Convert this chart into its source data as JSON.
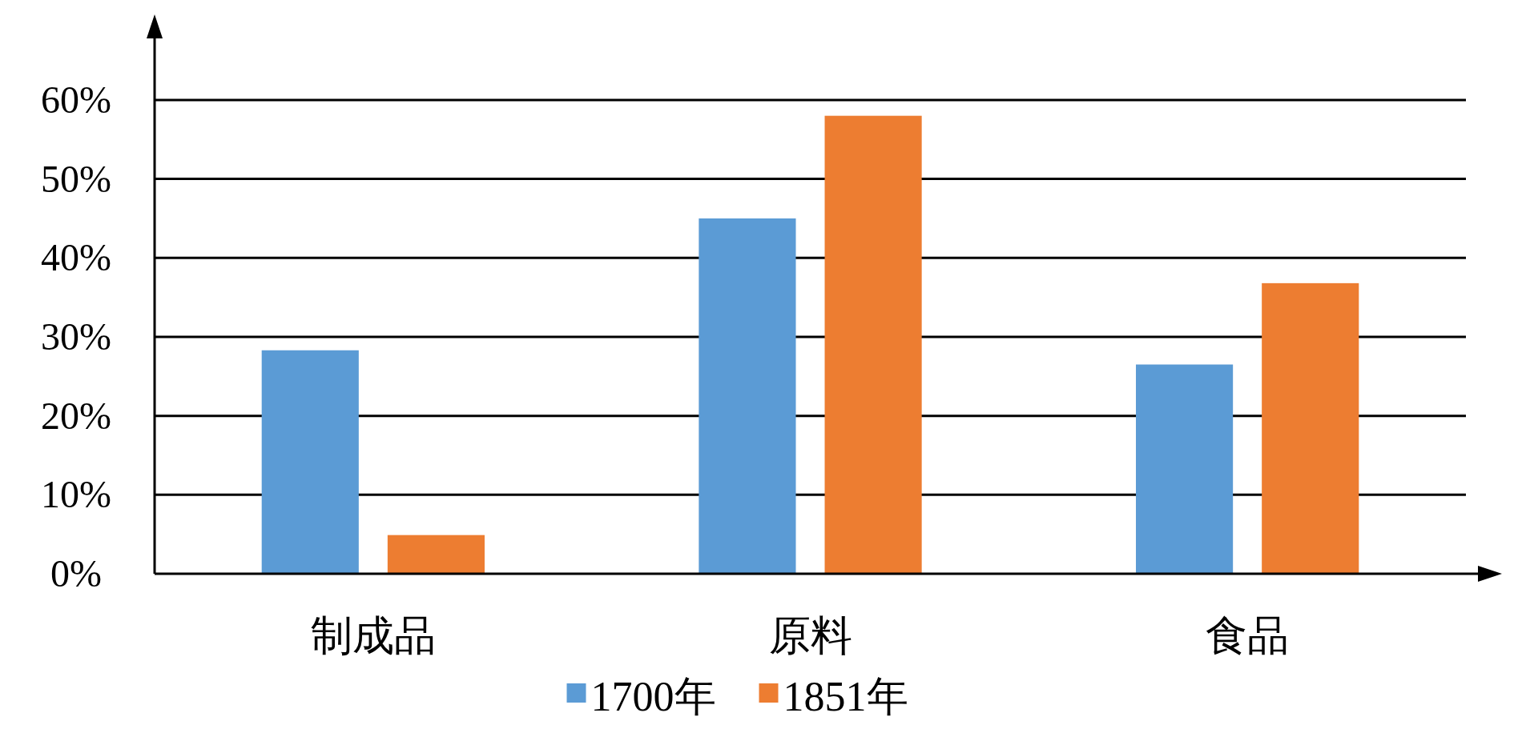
{
  "chart_data": {
    "type": "bar",
    "categories": [
      "制成品",
      "原料",
      "食品"
    ],
    "series": [
      {
        "name": "1700年",
        "color": "#5b9bd5",
        "values": [
          28.3,
          45,
          26.5
        ]
      },
      {
        "name": "1851年",
        "color": "#ed7d31",
        "values": [
          4.9,
          58,
          36.8
        ]
      }
    ],
    "ylim": [
      0,
      68
    ],
    "yticks": [
      {
        "value": 0,
        "label": "0%"
      },
      {
        "value": 10,
        "label": "10%"
      },
      {
        "value": 20,
        "label": "20%"
      },
      {
        "value": 30,
        "label": "30%"
      },
      {
        "value": 40,
        "label": "40%"
      },
      {
        "value": 50,
        "label": "50%"
      },
      {
        "value": 60,
        "label": "60%"
      }
    ],
    "grid": "y",
    "legend": "bottom"
  }
}
